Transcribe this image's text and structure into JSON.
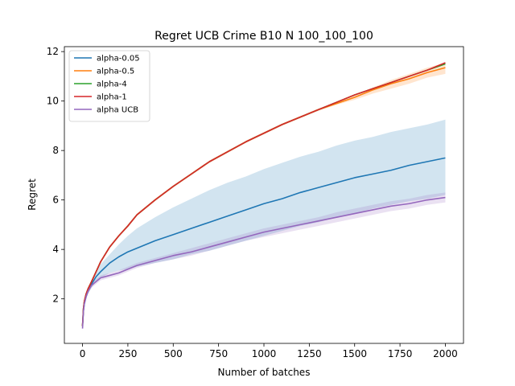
{
  "chart_data": {
    "type": "line",
    "title": "Regret UCB Crime B10 N 100_100_100",
    "xlabel": "Number of batches",
    "ylabel": "Regret",
    "xlim": [
      -100,
      2100
    ],
    "ylim": [
      0.2,
      12.2
    ],
    "xticks": [
      0,
      250,
      500,
      750,
      1000,
      1250,
      1500,
      1750,
      2000
    ],
    "yticks": [
      2,
      4,
      6,
      8,
      10,
      12
    ],
    "grid": false,
    "legend_position": "top-left",
    "x": [
      0,
      5,
      10,
      20,
      30,
      50,
      75,
      100,
      150,
      200,
      250,
      300,
      400,
      500,
      600,
      700,
      800,
      900,
      1000,
      1100,
      1200,
      1300,
      1400,
      1500,
      1600,
      1700,
      1800,
      1900,
      2000
    ],
    "series": [
      {
        "name": "alpha-0.05",
        "color": "#1f77b4",
        "values": [
          0.9,
          1.5,
          1.8,
          2.1,
          2.3,
          2.6,
          2.9,
          3.1,
          3.45,
          3.7,
          3.9,
          4.05,
          4.35,
          4.6,
          4.85,
          5.1,
          5.35,
          5.6,
          5.85,
          6.05,
          6.3,
          6.5,
          6.7,
          6.9,
          7.05,
          7.2,
          7.4,
          7.55,
          7.7
        ],
        "band_low": [
          0.8,
          1.4,
          1.7,
          2.0,
          2.2,
          2.45,
          2.7,
          2.85,
          3.05,
          3.15,
          3.2,
          3.3,
          3.45,
          3.6,
          3.8,
          3.95,
          4.15,
          4.35,
          4.55,
          4.75,
          4.95,
          5.1,
          5.3,
          5.45,
          5.65,
          5.8,
          5.95,
          6.05,
          6.2
        ],
        "band_high": [
          1.0,
          1.6,
          1.9,
          2.2,
          2.45,
          2.75,
          3.1,
          3.4,
          3.8,
          4.2,
          4.55,
          4.85,
          5.3,
          5.7,
          6.05,
          6.4,
          6.7,
          6.95,
          7.25,
          7.5,
          7.75,
          7.95,
          8.2,
          8.4,
          8.55,
          8.75,
          8.9,
          9.05,
          9.25
        ]
      },
      {
        "name": "alpha-0.5",
        "color": "#ff7f0e",
        "values": [
          0.9,
          1.6,
          1.9,
          2.2,
          2.4,
          2.7,
          3.1,
          3.5,
          4.1,
          4.55,
          4.95,
          5.4,
          6.0,
          6.55,
          7.05,
          7.55,
          7.95,
          8.35,
          8.7,
          9.05,
          9.35,
          9.65,
          9.9,
          10.15,
          10.45,
          10.7,
          10.9,
          11.15,
          11.35
        ],
        "band_low": [
          0.85,
          1.55,
          1.85,
          2.15,
          2.35,
          2.65,
          3.05,
          3.45,
          4.05,
          4.5,
          4.9,
          5.35,
          5.95,
          6.5,
          7.0,
          7.5,
          7.9,
          8.3,
          8.65,
          9.0,
          9.3,
          9.6,
          9.85,
          10.05,
          10.3,
          10.5,
          10.7,
          10.95,
          11.1
        ],
        "band_high": [
          0.95,
          1.65,
          1.95,
          2.25,
          2.45,
          2.75,
          3.15,
          3.55,
          4.15,
          4.6,
          5.0,
          5.45,
          6.05,
          6.6,
          7.1,
          7.6,
          8.0,
          8.4,
          8.75,
          9.1,
          9.4,
          9.7,
          9.95,
          10.25,
          10.55,
          10.85,
          11.1,
          11.35,
          11.55
        ]
      },
      {
        "name": "alpha-4",
        "color": "#2ca02c",
        "values": [
          0.9,
          1.6,
          1.9,
          2.2,
          2.4,
          2.7,
          3.1,
          3.5,
          4.1,
          4.55,
          4.95,
          5.4,
          6.0,
          6.55,
          7.05,
          7.55,
          7.95,
          8.35,
          8.7,
          9.05,
          9.35,
          9.65,
          9.95,
          10.25,
          10.5,
          10.75,
          11.0,
          11.25,
          11.5
        ]
      },
      {
        "name": "alpha-1",
        "color": "#d62728",
        "values": [
          0.9,
          1.6,
          1.9,
          2.2,
          2.4,
          2.7,
          3.1,
          3.5,
          4.1,
          4.55,
          4.95,
          5.4,
          6.0,
          6.55,
          7.05,
          7.55,
          7.95,
          8.35,
          8.7,
          9.05,
          9.35,
          9.65,
          9.95,
          10.25,
          10.5,
          10.75,
          11.0,
          11.25,
          11.55
        ]
      },
      {
        "name": "alpha UCB",
        "color": "#9467bd",
        "values": [
          0.8,
          1.5,
          1.8,
          2.1,
          2.3,
          2.55,
          2.7,
          2.85,
          2.95,
          3.05,
          3.2,
          3.35,
          3.55,
          3.75,
          3.9,
          4.1,
          4.3,
          4.5,
          4.7,
          4.85,
          5.0,
          5.15,
          5.3,
          5.45,
          5.6,
          5.75,
          5.85,
          6.0,
          6.1
        ],
        "band_low": [
          0.7,
          1.4,
          1.7,
          2.0,
          2.2,
          2.45,
          2.6,
          2.75,
          2.85,
          2.95,
          3.1,
          3.25,
          3.45,
          3.6,
          3.75,
          3.95,
          4.15,
          4.35,
          4.5,
          4.65,
          4.8,
          4.95,
          5.1,
          5.25,
          5.4,
          5.55,
          5.65,
          5.8,
          5.9
        ],
        "band_high": [
          0.9,
          1.6,
          1.9,
          2.2,
          2.4,
          2.65,
          2.8,
          2.95,
          3.05,
          3.15,
          3.3,
          3.45,
          3.65,
          3.85,
          4.05,
          4.25,
          4.45,
          4.65,
          4.85,
          5.0,
          5.15,
          5.3,
          5.5,
          5.65,
          5.8,
          5.95,
          6.05,
          6.2,
          6.3
        ]
      }
    ]
  }
}
